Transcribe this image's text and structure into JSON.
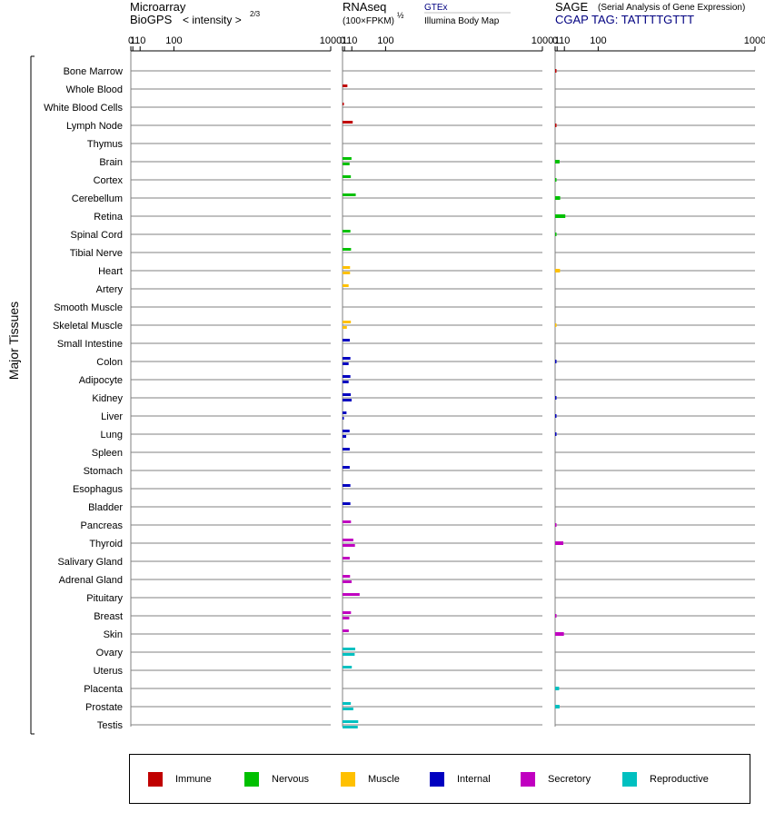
{
  "chart_data": {
    "type": "bar",
    "orientation": "horizontal",
    "y_axis_title": "Major Tissues",
    "categories": [
      "Bone Marrow",
      "Whole Blood",
      "White Blood Cells",
      "Lymph Node",
      "Thymus",
      "Brain",
      "Cortex",
      "Cerebellum",
      "Retina",
      "Spinal Cord",
      "Tibial Nerve",
      "Heart",
      "Artery",
      "Smooth Muscle",
      "Skeletal Muscle",
      "Small Intestine",
      "Colon",
      "Adipocyte",
      "Kidney",
      "Liver",
      "Lung",
      "Spleen",
      "Stomach",
      "Esophagus",
      "Bladder",
      "Pancreas",
      "Thyroid",
      "Salivary Gland",
      "Adrenal Gland",
      "Pituitary",
      "Breast",
      "Skin",
      "Ovary",
      "Uterus",
      "Placenta",
      "Prostate",
      "Testis"
    ],
    "category_groups": [
      "immune",
      "immune",
      "immune",
      "immune",
      "immune",
      "nervous",
      "nervous",
      "nervous",
      "nervous",
      "nervous",
      "nervous",
      "muscle",
      "muscle",
      "muscle",
      "muscle",
      "internal",
      "internal",
      "internal",
      "internal",
      "internal",
      "internal",
      "internal",
      "internal",
      "internal",
      "internal",
      "secretory",
      "secretory",
      "secretory",
      "secretory",
      "secretory",
      "secretory",
      "secretory",
      "reproductive",
      "reproductive",
      "reproductive",
      "reproductive",
      "reproductive"
    ],
    "tick_labels": [
      "0",
      "1",
      "10",
      "100",
      "1000"
    ],
    "tick_values": [
      0,
      1,
      10,
      100,
      1000
    ],
    "panels": [
      {
        "id": "microarray",
        "title_line1": "Microarray",
        "title_line2": "BioGPS",
        "scale_label": "< intensity >",
        "scale_exp": "2/3",
        "xlim": [
          0,
          1000
        ],
        "series": [
          {
            "name": "BioGPS",
            "values": [
              null,
              null,
              null,
              null,
              null,
              null,
              null,
              null,
              null,
              null,
              null,
              null,
              null,
              null,
              null,
              null,
              null,
              null,
              null,
              null,
              null,
              null,
              null,
              null,
              null,
              null,
              null,
              null,
              null,
              null,
              null,
              null,
              null,
              null,
              null,
              null,
              null
            ]
          }
        ]
      },
      {
        "id": "rnaseq",
        "title_line1": "RNAseq",
        "title_line2": "(100×FPKM)",
        "scale_exp": "½",
        "xlim": [
          0,
          1000
        ],
        "series": [
          {
            "name": "GTEx",
            "values": [
              null,
              3.8,
              0.08,
              11.5,
              null,
              9.5,
              8.5,
              17,
              null,
              7.8,
              8.8,
              7.3,
              5.3,
              null,
              8.5,
              7,
              7.8,
              7.8,
              8.4,
              2.8,
              6.6,
              6.8,
              6.8,
              7.8,
              7.8,
              8.7,
              12.5,
              6.8,
              7.3,
              25,
              8.7,
              5.5,
              16,
              10,
              null,
              8.5,
              22
            ]
          },
          {
            "name": "Illumina Body Map",
            "values": [
              null,
              null,
              null,
              null,
              null,
              6.6,
              null,
              null,
              null,
              null,
              null,
              7.3,
              null,
              null,
              3.2,
              null,
              5.3,
              5.3,
              9.7,
              0.05,
              2.5,
              null,
              null,
              null,
              null,
              null,
              15.5,
              null,
              9.7,
              null,
              6.2,
              null,
              15,
              null,
              null,
              12.5,
              21
            ]
          }
        ]
      },
      {
        "id": "sage",
        "title_line1": "SAGE",
        "title_note": "(Serial Analysis of Gene Expression)",
        "title_line2": "CGAP TAG: TATTTTGTTT",
        "xlim": [
          0,
          1000
        ],
        "series": [
          {
            "name": "SAGE",
            "values": [
              0.05,
              null,
              null,
              0.05,
              null,
              3.3,
              0.03,
              4.0,
              11.5,
              0.03,
              null,
              3.8,
              null,
              null,
              0.01,
              null,
              0.05,
              null,
              0.05,
              0.05,
              0.05,
              null,
              null,
              null,
              null,
              0.05,
              8.3,
              null,
              null,
              null,
              0.05,
              9.2,
              null,
              null,
              2.8,
              3.3,
              null
            ]
          }
        ]
      }
    ],
    "legend": [
      {
        "key": "immune",
        "label": "Immune",
        "color": "#c00000"
      },
      {
        "key": "nervous",
        "label": "Nervous",
        "color": "#00c000"
      },
      {
        "key": "muscle",
        "label": "Muscle",
        "color": "#ffc000"
      },
      {
        "key": "internal",
        "label": "Internal",
        "color": "#0000c0"
      },
      {
        "key": "secretory",
        "label": "Secretory",
        "color": "#c000c0"
      },
      {
        "key": "reproductive",
        "label": "Reproductive",
        "color": "#00c0c0"
      }
    ],
    "legend_placement": "bottom",
    "scale": "power 2/3 (compressed, log-like)",
    "grid": "horizontal row lines"
  }
}
